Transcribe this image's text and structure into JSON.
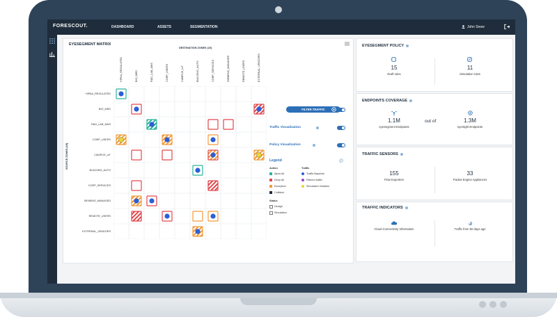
{
  "header": {
    "logo": "FORESCOUT.",
    "nav": [
      "DASHBOARD",
      "ASSETS",
      "SEGMENTATION"
    ],
    "user": "John Snow"
  },
  "matrix": {
    "title": "EYESEGMENT MATRIX",
    "dest_label": "DESTINATION ZONES (10)",
    "source_label": "SOURCE ZONES (10)",
    "zones": [
      "HIPAA_REGULATED",
      "BIO_MED",
      "R&D_LAB_AWS",
      "CORP_USERS",
      "CAMPUS_IoT",
      "BUILDING_AUTO",
      "CORP_SERVICES",
      "SIEMENS_MANAGED",
      "REMOTE_USERS",
      "EXTERNAL_VENDORS"
    ],
    "cells": [
      {
        "r": 0,
        "c": 0,
        "border": "teal",
        "fill": "none",
        "dot": "blue"
      },
      {
        "r": 1,
        "c": 1,
        "border": "red",
        "fill": "none",
        "dot": "blue"
      },
      {
        "r": 1,
        "c": 9,
        "border": "red",
        "fill": "hatch-red",
        "dot": "blue"
      },
      {
        "r": 2,
        "c": 2,
        "border": "teal",
        "fill": "hatch-teal",
        "dot": "blue"
      },
      {
        "r": 2,
        "c": 6,
        "border": "red",
        "fill": "none",
        "dot": ""
      },
      {
        "r": 2,
        "c": 7,
        "border": "red",
        "fill": "none",
        "dot": ""
      },
      {
        "r": 3,
        "c": 0,
        "border": "orange",
        "fill": "hatch-orange",
        "dot": "yellow"
      },
      {
        "r": 3,
        "c": 3,
        "border": "orange",
        "fill": "hatch-orange",
        "dot": "blue"
      },
      {
        "r": 3,
        "c": 6,
        "border": "orange",
        "fill": "none",
        "dot": "blue"
      },
      {
        "r": 4,
        "c": 1,
        "border": "red",
        "fill": "none",
        "dot": ""
      },
      {
        "r": 4,
        "c": 3,
        "border": "red",
        "fill": "none",
        "dot": ""
      },
      {
        "r": 4,
        "c": 6,
        "border": "red",
        "fill": "hatch-orange",
        "dot": "blue"
      },
      {
        "r": 4,
        "c": 9,
        "border": "orange",
        "fill": "hatch-orange",
        "dot": "yellow"
      },
      {
        "r": 5,
        "c": 5,
        "border": "teal",
        "fill": "none",
        "dot": "blue"
      },
      {
        "r": 6,
        "c": 1,
        "border": "red",
        "fill": "none",
        "dot": ""
      },
      {
        "r": 6,
        "c": 6,
        "border": "red",
        "fill": "hatch-red",
        "dot": ""
      },
      {
        "r": 7,
        "c": 1,
        "border": "orange",
        "fill": "hatch-orange",
        "dot": "blue"
      },
      {
        "r": 7,
        "c": 2,
        "border": "red",
        "fill": "none",
        "dot": "blue"
      },
      {
        "r": 8,
        "c": 1,
        "border": "red",
        "fill": "hatch-red",
        "dot": ""
      },
      {
        "r": 8,
        "c": 3,
        "border": "red",
        "fill": "none",
        "dot": "blue"
      },
      {
        "r": 8,
        "c": 5,
        "border": "orange",
        "fill": "none",
        "dot": ""
      },
      {
        "r": 8,
        "c": 6,
        "border": "orange",
        "fill": "none",
        "dot": "blue"
      },
      {
        "r": 9,
        "c": 5,
        "border": "orange",
        "fill": "hatch-orange",
        "dot": "blue"
      }
    ]
  },
  "controls": {
    "filter_button": "FILTER TRAFFIC",
    "traffic_viz": "Traffic Visualization",
    "policy_viz": "Policy Visualization"
  },
  "legend": {
    "title": "Legend",
    "action_head": "Action",
    "actions": [
      "Allow All",
      "Deny All",
      "Exception",
      "Collision"
    ],
    "traffic_head": "Traffic",
    "traffic": [
      "Traffic Baseline",
      "Filtered traffic",
      "Simulation Violation"
    ],
    "status_head": "Status",
    "status": [
      "Design",
      "Simulation"
    ]
  },
  "policy": {
    "title": "EYESEGMENT POLICY",
    "draft_value": "15",
    "draft_label": "Draft rules",
    "sim_value": "11",
    "sim_label": "Simulation rules"
  },
  "endpoints": {
    "title": "ENDPOINTS COVERAGE",
    "left_value": "1.1M",
    "left_label": "eyeSegment Endpoints",
    "mid": "out of",
    "right_value": "1.3M",
    "right_label": "eyeSight Endpoints"
  },
  "sensors": {
    "title": "TRAFFIC SENSORS",
    "left_value": "155",
    "left_label": "Flow Exporters",
    "right_value": "33",
    "right_label": "Packet Engine Appliances"
  },
  "indicators": {
    "title": "TRAFFIC INDICATORS",
    "left_label": "Cloud Connectivity Information",
    "right_label": "Traffic from 90 days ago"
  },
  "colors": {
    "navy": "#1e2c3b",
    "blue": "#2c6fb7",
    "dot_blue": "#2b5fd6",
    "teal": "#2bb39a",
    "red": "#e0474c",
    "orange": "#f29a3a",
    "yellow": "#e8d43a"
  }
}
